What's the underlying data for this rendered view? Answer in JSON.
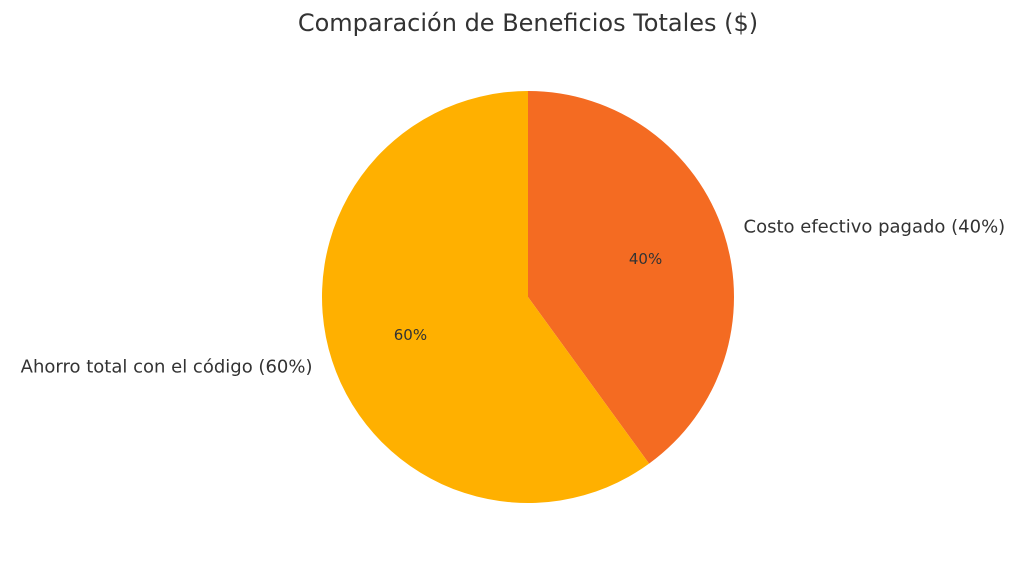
{
  "chart_data": {
    "type": "pie",
    "title": "Comparación de Beneficios Totales ($)",
    "slices": [
      {
        "name": "Costo efectivo pagado",
        "label": "Costo efectivo pagado (40%)",
        "value": 40,
        "pct_label": "40%",
        "color": "#F46B22"
      },
      {
        "name": "Ahorro total con el código",
        "label": "Ahorro total con el código (60%)",
        "value": 60,
        "pct_label": "60%",
        "color": "#FFB000"
      }
    ],
    "start_angle_deg": 90,
    "direction": "clockwise"
  }
}
